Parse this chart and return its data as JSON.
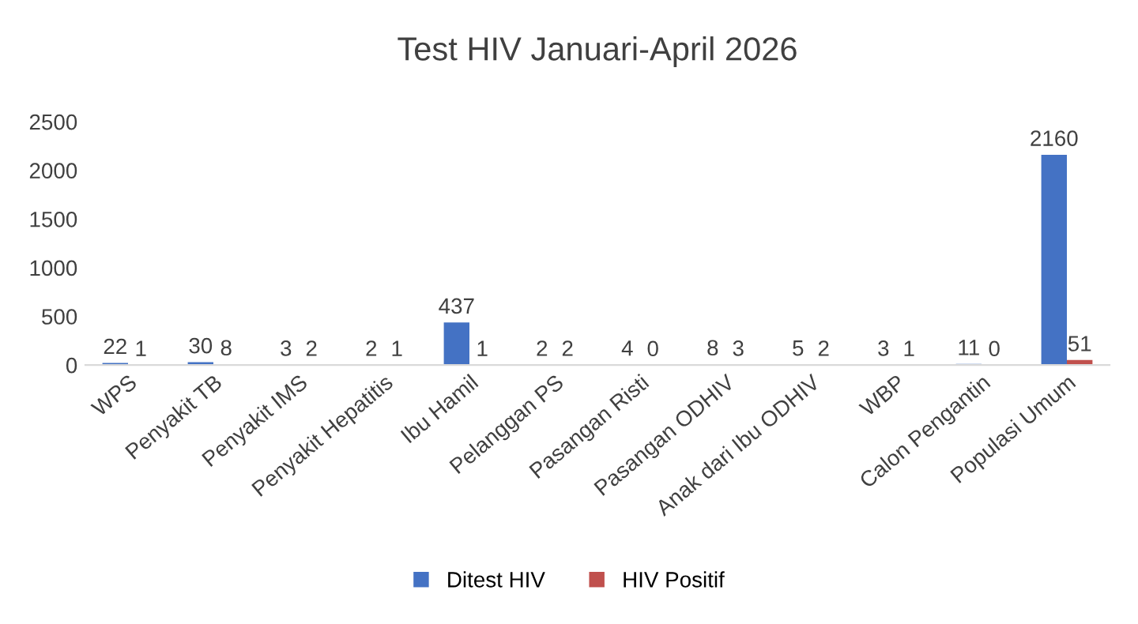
{
  "chart_data": {
    "type": "bar",
    "title": "Test HIV Januari-April 2026",
    "categories": [
      "WPS",
      "Penyakit TB",
      "Penyakit IMS",
      "Penyakit Hepatitis",
      "Ibu Hamil",
      "Pelanggan PS",
      "Pasangan Risti",
      "Pasangan ODHIV",
      "Anak dari Ibu ODHIV",
      "WBP",
      "Calon Pengantin",
      "Populasi Umum"
    ],
    "series": [
      {
        "name": "Ditest HIV",
        "color": "#4472c4",
        "values": [
          22,
          30,
          3,
          2,
          437,
          2,
          4,
          8,
          5,
          3,
          11,
          2160
        ]
      },
      {
        "name": "HIV Positif",
        "color": "#c0504d",
        "values": [
          1,
          8,
          2,
          1,
          1,
          2,
          0,
          3,
          2,
          1,
          0,
          51
        ]
      }
    ],
    "ylim": [
      0,
      2500
    ],
    "yticks": [
      0,
      500,
      1000,
      1500,
      2000,
      2500
    ],
    "data_labels": true,
    "grid": false,
    "legend": "bottom"
  }
}
